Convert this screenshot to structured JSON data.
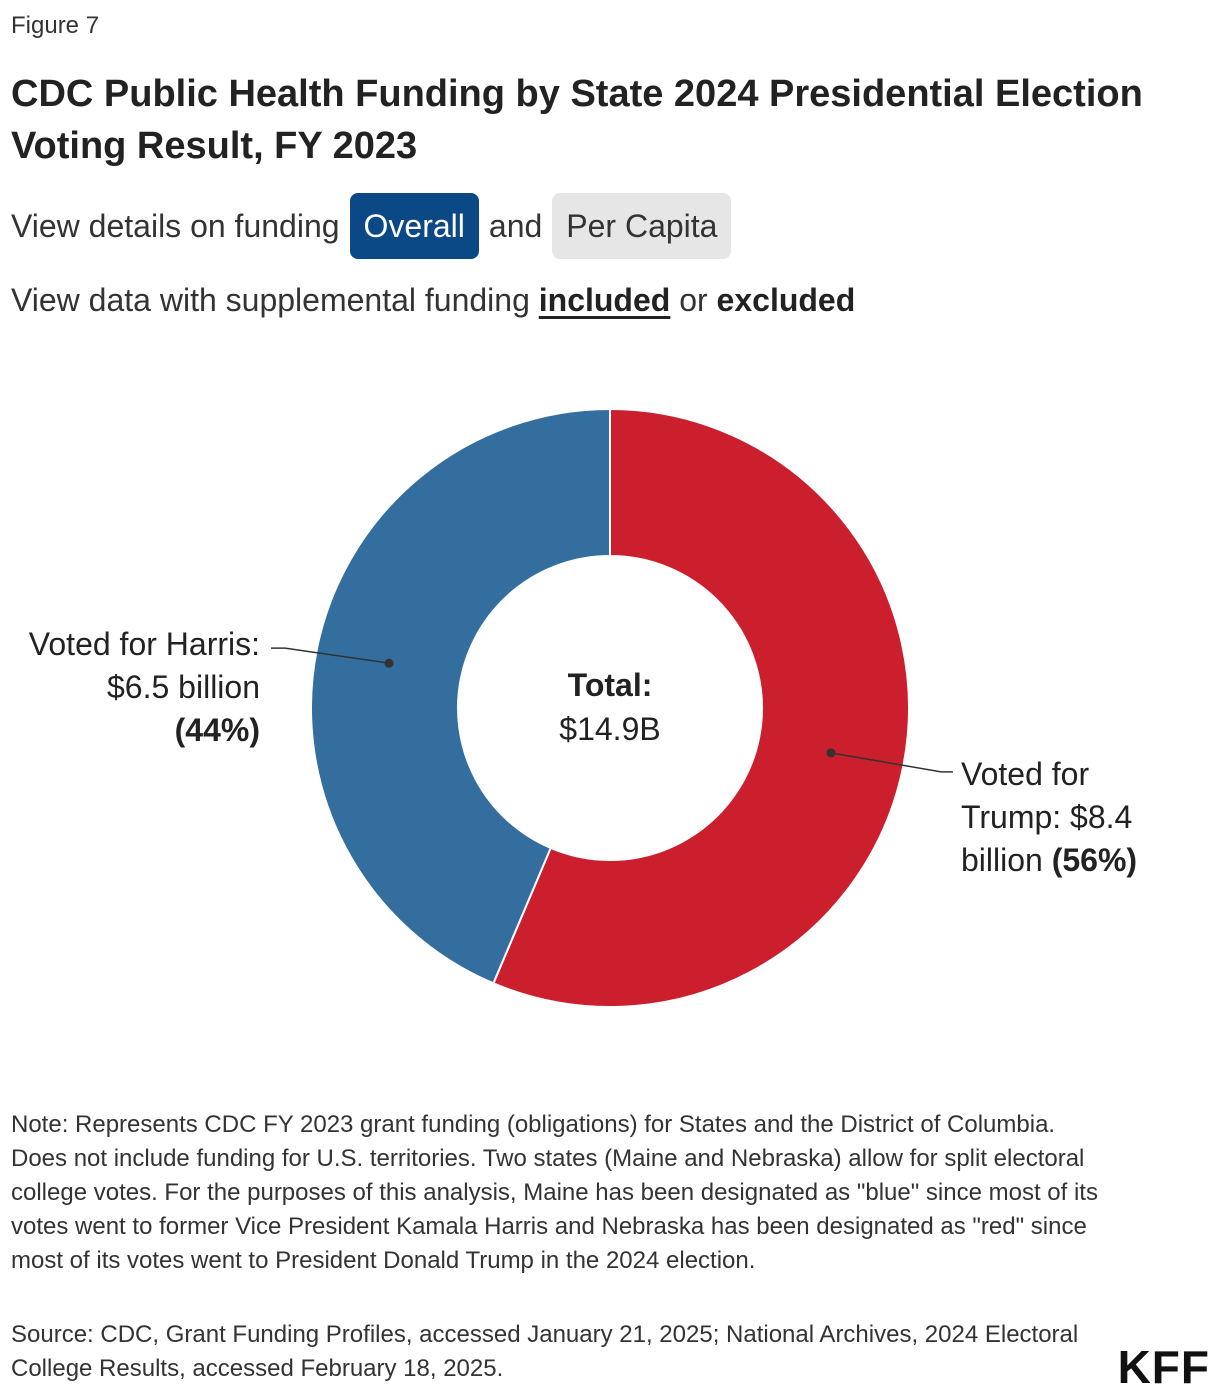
{
  "figure_label": "Figure 7",
  "title": "CDC Public Health Funding by State 2024 Presidential Election Voting Result, FY 2023",
  "controls": {
    "view_prefix": "View details on funding",
    "overall_label": "Overall",
    "and_text": "and",
    "per_capita_label": "Per Capita",
    "supplemental_prefix": "View data with supplemental funding",
    "included_label": "included",
    "or_text": "or",
    "excluded_label": "excluded"
  },
  "colors": {
    "harris": "#336e9e",
    "trump": "#cc1f2d",
    "active_button": "#0b4886",
    "inactive_button": "#e6e6e6"
  },
  "chart_data": {
    "type": "pie",
    "title": "CDC Public Health Funding by State 2024 Presidential Election Voting Result, FY 2023",
    "center_label": "Total:",
    "center_value": "$14.9B",
    "total_billion": 14.9,
    "slices": [
      {
        "name": "Voted for Trump",
        "value_billion": 8.4,
        "percent": 56,
        "label_line1": "Voted for",
        "label_line2": "Trump: $8.4",
        "label_line3_text": "billion",
        "label_pct": "(56%)"
      },
      {
        "name": "Voted for Harris",
        "value_billion": 6.5,
        "percent": 44,
        "label_line1": "Voted for Harris:",
        "label_line2": "$6.5 billion",
        "label_pct": "(44%)"
      }
    ]
  },
  "note": "Note: Represents CDC FY 2023 grant funding (obligations) for States and the District of Columbia. Does not include funding for U.S. territories. Two states (Maine and Nebraska) allow for split electoral college votes. For the purposes of this analysis, Maine has been designated as \"blue\" since most of its votes went to former Vice President Kamala Harris and Nebraska has been designated as \"red\" since most of its votes went to President Donald Trump in the 2024 election.",
  "source": "Source: CDC, Grant Funding Profiles, accessed January 21, 2025; National Archives, 2024 Electoral College Results, accessed February 18, 2025.",
  "logo": "KFF"
}
